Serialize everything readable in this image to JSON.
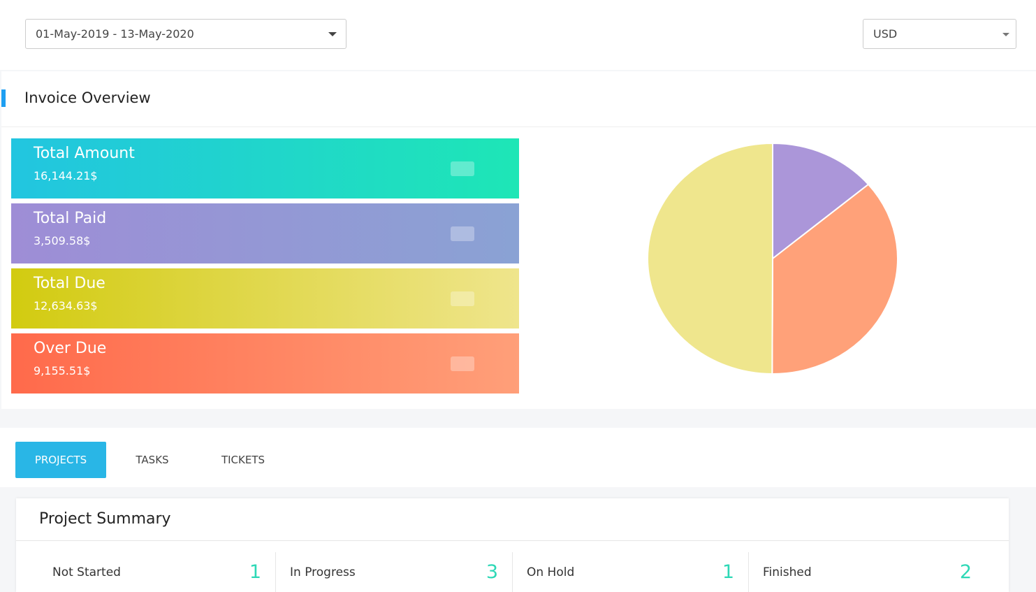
{
  "filters": {
    "date_range": "01-May-2019 - 13-May-2020",
    "currency": "USD"
  },
  "invoice_overview": {
    "title": "Invoice Overview",
    "cards": [
      {
        "label": "Total Amount",
        "value": "16,144.21$"
      },
      {
        "label": "Total Paid",
        "value": "3,509.58$"
      },
      {
        "label": "Total Due",
        "value": "12,634.63$"
      },
      {
        "label": "Over Due",
        "value": "9,155.51$"
      }
    ]
  },
  "chart_data": {
    "type": "pie",
    "values": [
      3509.58,
      9155.51,
      12634.63
    ],
    "colors": [
      "#ab96d9",
      "#ffa179",
      "#efe68d"
    ]
  },
  "tabs": [
    "PROJECTS",
    "TASKS",
    "TICKETS"
  ],
  "project_summary": {
    "title": "Project Summary",
    "stats": [
      {
        "label": "Not Started",
        "count": 1
      },
      {
        "label": "In Progress",
        "count": 3
      },
      {
        "label": "On Hold",
        "count": 1
      },
      {
        "label": "Finished",
        "count": 2
      }
    ]
  }
}
